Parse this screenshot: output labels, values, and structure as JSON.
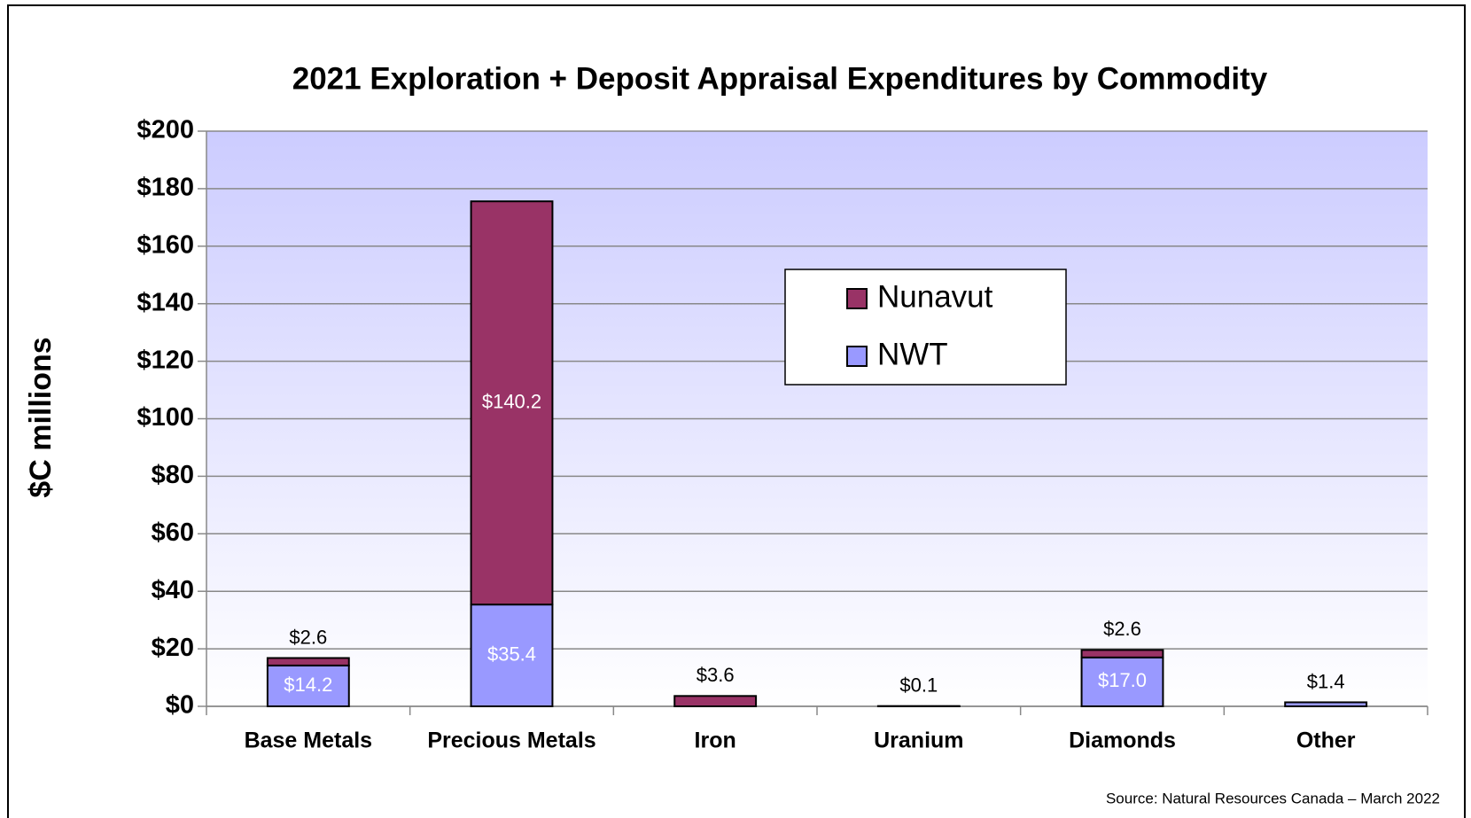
{
  "chart_data": {
    "type": "bar",
    "stacked": true,
    "title": "2021 Exploration + Deposit Appraisal Expenditures by Commodity",
    "ylabel": "$C millions",
    "source": "Source: Natural Resources Canada – March 2022",
    "categories": [
      "Base Metals",
      "Precious Metals",
      "Iron",
      "Uranium",
      "Diamonds",
      "Other"
    ],
    "series": [
      {
        "name": "NWT",
        "color": "#9999ff",
        "values": [
          14.2,
          35.4,
          null,
          null,
          17.0,
          1.4
        ],
        "value_labels": [
          "$14.2",
          "$35.4",
          null,
          null,
          "$17.0",
          "$1.4"
        ]
      },
      {
        "name": "Nunavut",
        "color": "#993366",
        "values": [
          2.6,
          140.2,
          3.6,
          0.1,
          2.6,
          null
        ],
        "value_labels": [
          "$2.6",
          "$140.2",
          "$3.6",
          "$0.1",
          "$2.6",
          null
        ]
      }
    ],
    "ylim": [
      0,
      200
    ],
    "yticks": [
      {
        "value": 0,
        "label": "$0"
      },
      {
        "value": 20,
        "label": "$20"
      },
      {
        "value": 40,
        "label": "$40"
      },
      {
        "value": 60,
        "label": "$60"
      },
      {
        "value": 80,
        "label": "$80"
      },
      {
        "value": 100,
        "label": "$100"
      },
      {
        "value": 120,
        "label": "$120"
      },
      {
        "value": 140,
        "label": "$140"
      },
      {
        "value": 160,
        "label": "$160"
      },
      {
        "value": 180,
        "label": "$180"
      },
      {
        "value": 200,
        "label": "$200"
      }
    ],
    "grid": true,
    "legend": "center"
  }
}
